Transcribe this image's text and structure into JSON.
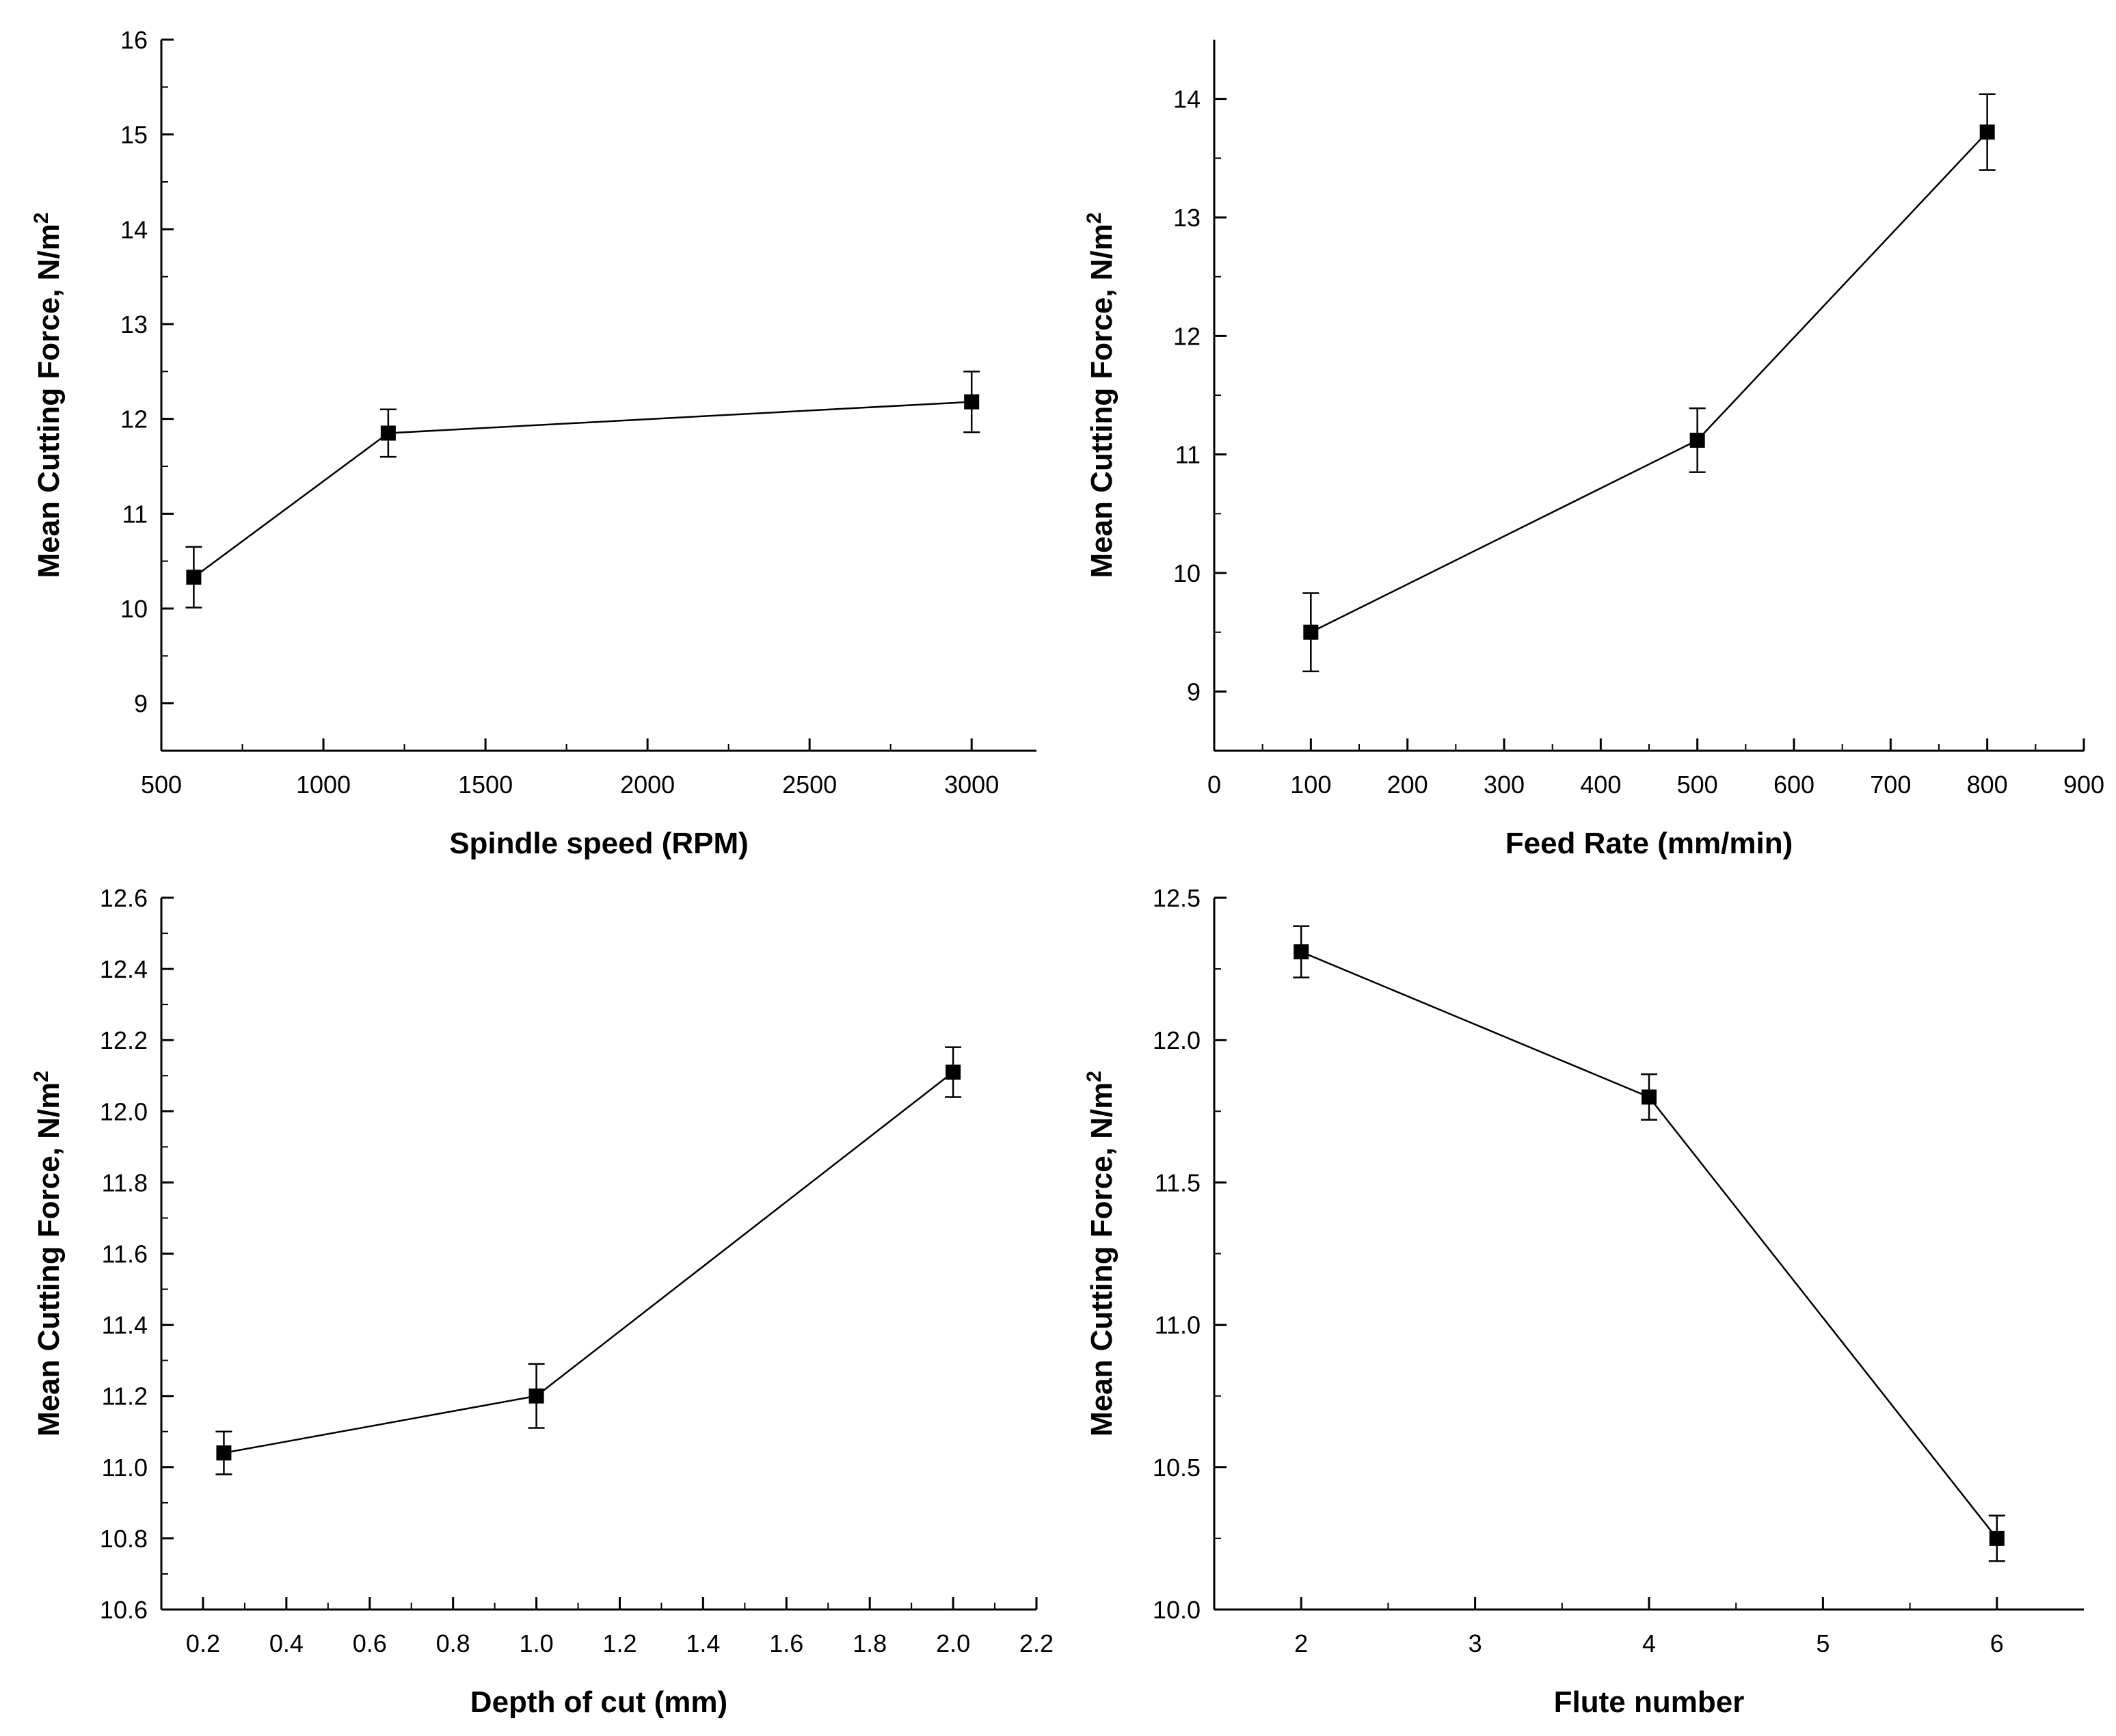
{
  "chart_data": [
    {
      "type": "line",
      "xlabel": "Spindle speed (RPM)",
      "ylabel": "Mean Cutting Force, N/m",
      "ylabel_sup": "2",
      "xlim": [
        500,
        3200
      ],
      "ylim": [
        8.5,
        16
      ],
      "xticks": [
        500,
        1000,
        1500,
        2000,
        2500,
        3000
      ],
      "xtick_labels": [
        "500",
        "1000",
        "1500",
        "2000",
        "2500",
        "3000"
      ],
      "yticks": [
        9,
        10,
        11,
        12,
        13,
        14,
        15,
        16
      ],
      "ytick_labels": [
        "9",
        "10",
        "11",
        "12",
        "13",
        "14",
        "15",
        "16"
      ],
      "x": [
        600,
        1200,
        3000
      ],
      "y": [
        10.33,
        11.85,
        12.18
      ],
      "err": [
        0.32,
        0.25,
        0.32
      ]
    },
    {
      "type": "line",
      "xlabel": "Feed Rate (mm/min)",
      "ylabel": "Mean Cutting Force, N/m",
      "ylabel_sup": "2",
      "xlim": [
        0,
        900
      ],
      "ylim": [
        8.5,
        14.5
      ],
      "xticks": [
        0,
        100,
        200,
        300,
        400,
        500,
        600,
        700,
        800,
        900
      ],
      "xtick_labels": [
        "0",
        "100",
        "200",
        "300",
        "400",
        "500",
        "600",
        "700",
        "800",
        "900"
      ],
      "yticks": [
        9,
        10,
        11,
        12,
        13,
        14
      ],
      "ytick_labels": [
        "9",
        "10",
        "11",
        "12",
        "13",
        "14"
      ],
      "x": [
        100,
        500,
        800
      ],
      "y": [
        9.5,
        11.12,
        13.72
      ],
      "err": [
        0.33,
        0.27,
        0.32
      ]
    },
    {
      "type": "line",
      "xlabel": "Depth of cut (mm)",
      "ylabel": "Mean Cutting Force, N/m",
      "ylabel_sup": "2",
      "xlim": [
        0.1,
        2.2
      ],
      "ylim": [
        10.6,
        12.6
      ],
      "xticks": [
        0.2,
        0.4,
        0.6,
        0.8,
        1.0,
        1.2,
        1.4,
        1.6,
        1.8,
        2.0,
        2.2
      ],
      "xtick_labels": [
        "0.2",
        "0.4",
        "0.6",
        "0.8",
        "1.0",
        "1.2",
        "1.4",
        "1.6",
        "1.8",
        "2.0",
        "2.2"
      ],
      "yticks": [
        10.6,
        10.8,
        11.0,
        11.2,
        11.4,
        11.6,
        11.8,
        12.0,
        12.2,
        12.4,
        12.6
      ],
      "ytick_labels": [
        "10.6",
        "10.8",
        "11.0",
        "11.2",
        "11.4",
        "11.6",
        "11.8",
        "12.0",
        "12.2",
        "12.4",
        "12.6"
      ],
      "x": [
        0.25,
        1.0,
        2.0
      ],
      "y": [
        11.04,
        11.2,
        12.11
      ],
      "err": [
        0.06,
        0.09,
        0.07
      ]
    },
    {
      "type": "line",
      "xlabel": "Flute number",
      "ylabel": "Mean Cutting Force, N/m",
      "ylabel_sup": "2",
      "xlim": [
        1.5,
        6.5
      ],
      "ylim": [
        10.0,
        12.5
      ],
      "xticks": [
        2,
        3,
        4,
        5,
        6
      ],
      "xtick_labels": [
        "2",
        "3",
        "4",
        "5",
        "6"
      ],
      "yticks": [
        10.0,
        10.5,
        11.0,
        11.5,
        12.0,
        12.5
      ],
      "ytick_labels": [
        "10.0",
        "10.5",
        "11.0",
        "11.5",
        "12.0",
        "12.5"
      ],
      "x": [
        2,
        4,
        6
      ],
      "y": [
        12.31,
        11.8,
        10.25
      ],
      "err": [
        0.09,
        0.08,
        0.08
      ]
    }
  ]
}
